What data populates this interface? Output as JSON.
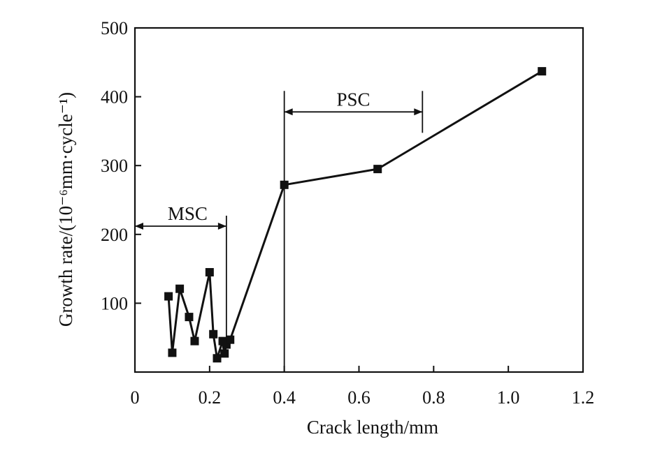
{
  "chart_data": {
    "type": "line",
    "xlabel": "Crack length/mm",
    "ylabel": "Growth rate/(10⁻⁶mm·cycle⁻¹)",
    "xlim": [
      0,
      1.2
    ],
    "ylim": [
      0,
      500
    ],
    "xticks": [
      0,
      0.2,
      0.4,
      0.6,
      0.8,
      1.0,
      1.2
    ],
    "xtick_labels": [
      "0",
      "0.2",
      "0.4",
      "0.6",
      "0.8",
      "1.0",
      "1.2"
    ],
    "yticks": [
      100,
      200,
      300,
      400,
      500
    ],
    "ytick_labels": [
      "100",
      "200",
      "300",
      "400",
      "500"
    ],
    "grid": false,
    "marker": "square",
    "series": [
      {
        "x": [
          0.09,
          0.1,
          0.12,
          0.145,
          0.16,
          0.2,
          0.21,
          0.22,
          0.235,
          0.24,
          0.245,
          0.255,
          0.4,
          0.65,
          1.09
        ],
        "y": [
          110,
          28,
          121,
          80,
          45,
          145,
          55,
          20,
          45,
          27,
          40,
          47,
          272,
          295,
          437
        ]
      }
    ],
    "annotations": [
      {
        "label": "MSC",
        "x_start": 0,
        "x_end": 0.245,
        "y": 212,
        "cap": "end"
      },
      {
        "label": "PSC",
        "x_start": 0.4,
        "x_end": 0.77,
        "y": 378,
        "cap": "both"
      }
    ]
  }
}
